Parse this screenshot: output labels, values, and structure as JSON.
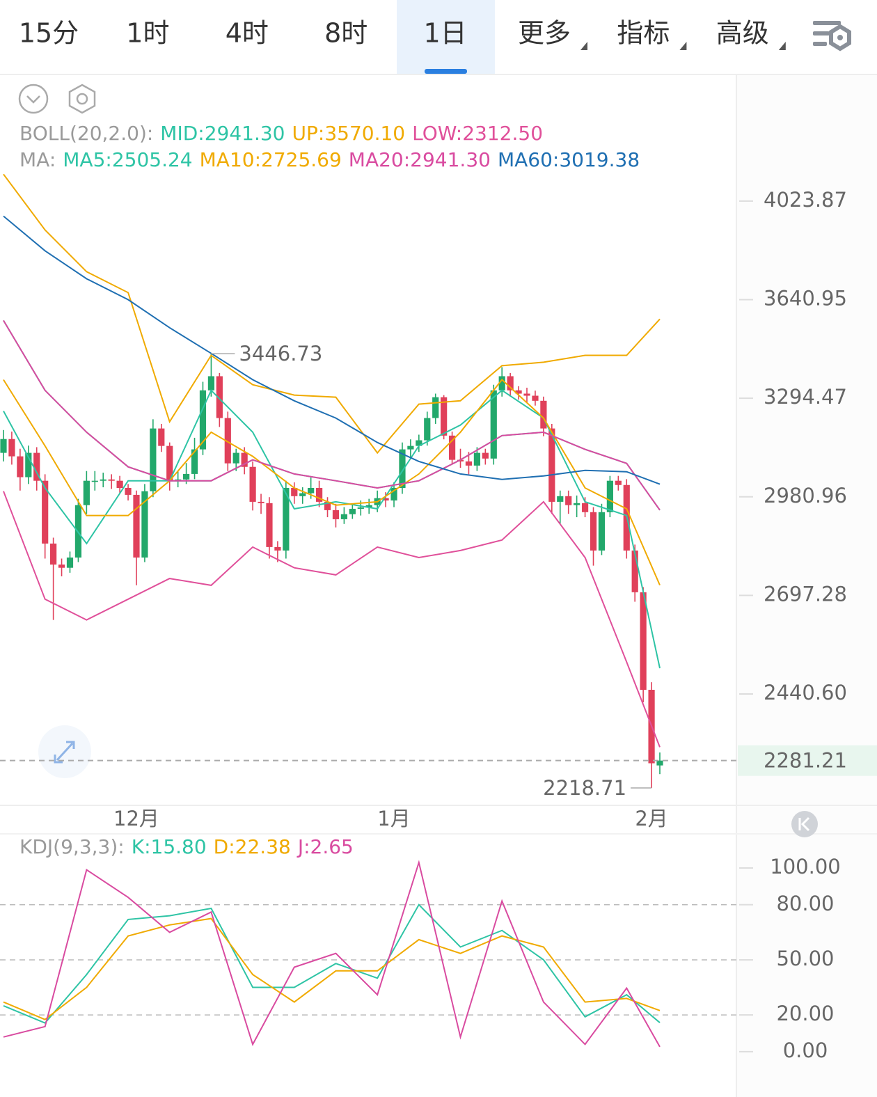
{
  "tabs": [
    {
      "label": "15分"
    },
    {
      "label": "1时"
    },
    {
      "label": "4时"
    },
    {
      "label": "8时"
    },
    {
      "label": "1日",
      "active": true
    },
    {
      "label": "更多",
      "dropdown": true
    },
    {
      "label": "指标",
      "dropdown": true
    },
    {
      "label": "高级",
      "dropdown": true
    }
  ],
  "chart_data": [
    {
      "type": "candlestick",
      "log": true,
      "ylim": [
        2183,
        4136
      ],
      "yticks": [
        4023.87,
        3640.95,
        3294.47,
        2980.96,
        2697.28,
        {
          "value": 2440.6,
          "label": "2440.60"
        }
      ],
      "up_color": "#22a86b",
      "down_color": "#e0405a",
      "categories": [
        null,
        null,
        null,
        null,
        null,
        null,
        null,
        null,
        null,
        null,
        null,
        null,
        null,
        null,
        null,
        null,
        "12月",
        null,
        null,
        null,
        null,
        null,
        null,
        null,
        null,
        null,
        null,
        null,
        null,
        null,
        null,
        null,
        null,
        null,
        null,
        null,
        null,
        null,
        null,
        null,
        null,
        null,
        null,
        null,
        null,
        null,
        null,
        "1月",
        null,
        null,
        null,
        null,
        null,
        null,
        null,
        null,
        null,
        null,
        null,
        null,
        null,
        null,
        null,
        null,
        null,
        null,
        null,
        null,
        null,
        null,
        null,
        null,
        null,
        null,
        null,
        null,
        null,
        null,
        "2月",
        null
      ],
      "candles": {
        "open": [
          3117,
          3161,
          3106,
          3041,
          3117,
          3030,
          2843,
          2783,
          2774,
          2803,
          2956,
          3030,
          3030,
          3034,
          3030,
          3008,
          2987,
          2803,
          2998,
          3195,
          3139,
          3030,
          3034,
          3051,
          3128,
          3321,
          3369,
          3229,
          3084,
          3117,
          3073,
          2966,
          2962,
          2833,
          2823,
          3008,
          2983,
          2992,
          3008,
          2966,
          2941,
          2914,
          2929,
          2945,
          2949,
          2956,
          2977,
          2970,
          3008,
          3128,
          3139,
          3157,
          3229,
          3298,
          3172,
          3095,
          3090,
          3077,
          3117,
          3099,
          3321,
          3369,
          3321,
          3310,
          3303,
          3286,
          3195,
          2966,
          2983,
          2956,
          2962,
          2935,
          2823,
          2935,
          3030,
          3017,
          2823,
          2706,
          2451,
          2270
        ],
        "high": [
          3190,
          3185,
          3130,
          3140,
          3135,
          3050,
          2860,
          2800,
          2820,
          2975,
          3060,
          3060,
          3055,
          3050,
          3045,
          3020,
          3000,
          3020,
          3225,
          3210,
          3150,
          3060,
          3085,
          3165,
          3350,
          3446.73,
          3380,
          3250,
          3130,
          3135,
          3090,
          2990,
          2980,
          2850,
          3030,
          3025,
          3010,
          3040,
          3030,
          2980,
          2960,
          2950,
          2960,
          2970,
          2975,
          3000,
          2995,
          3025,
          3150,
          3160,
          3175,
          3250,
          3310,
          3305,
          3185,
          3130,
          3120,
          3135,
          3130,
          3340,
          3400,
          3380,
          3335,
          3330,
          3320,
          3300,
          3210,
          3000,
          3000,
          2985,
          2980,
          2950,
          2960,
          3045,
          3045,
          3035,
          2840,
          2720,
          2470,
          2300
        ],
        "low": [
          3090,
          3080,
          3000,
          3020,
          3000,
          2800,
          2631,
          2750,
          2760,
          2790,
          2930,
          3000,
          3010,
          3005,
          2990,
          2970,
          2725,
          2790,
          2980,
          3120,
          3000,
          3010,
          3020,
          3035,
          3110,
          3300,
          3200,
          3060,
          3060,
          3050,
          2940,
          2930,
          2800,
          2790,
          2800,
          2960,
          2960,
          2975,
          2950,
          2920,
          2890,
          2900,
          2915,
          2925,
          2930,
          2935,
          2950,
          2950,
          2990,
          3100,
          3120,
          3140,
          3210,
          3160,
          3080,
          3070,
          3050,
          3060,
          3080,
          3080,
          3300,
          3300,
          3290,
          3280,
          3270,
          3170,
          2930,
          2900,
          2930,
          2920,
          2920,
          2780,
          2810,
          2920,
          3000,
          2800,
          2680,
          2420,
          2218.71,
          2250
        ],
        "close": [
          3161,
          3106,
          3041,
          3117,
          3030,
          2843,
          2783,
          2774,
          2803,
          2956,
          3030,
          3030,
          3034,
          3030,
          3008,
          2987,
          2803,
          2998,
          3195,
          3139,
          3030,
          3034,
          3051,
          3128,
          3321,
          3369,
          3229,
          3084,
          3117,
          3073,
          2966,
          2962,
          2833,
          2823,
          3008,
          2983,
          2992,
          3008,
          2966,
          2941,
          2914,
          2929,
          2945,
          2949,
          2956,
          2977,
          2970,
          3008,
          3128,
          3139,
          3157,
          3229,
          3298,
          3172,
          3095,
          3090,
          3077,
          3117,
          3099,
          3321,
          3369,
          3321,
          3310,
          3303,
          3286,
          3195,
          2966,
          2983,
          2956,
          2962,
          2935,
          2823,
          2935,
          3030,
          3017,
          2823,
          2706,
          2451,
          2275,
          2281.21
        ]
      },
      "indicator_labels": [
        "BOLL(20,2.0):",
        "MA:"
      ],
      "overlay_x": [
        0,
        5,
        10,
        15,
        20,
        25,
        30,
        35,
        40,
        45,
        50,
        55,
        60,
        65,
        70,
        75,
        79
      ],
      "overlays": [
        {
          "name": "MID",
          "label": "MID:2941.30",
          "group": 0,
          "color": "#2ec4a5",
          "values": [
            3565,
            3321,
            3183,
            3073,
            3030,
            3030,
            3095,
            3051,
            3030,
            3008,
            3030,
            3095,
            3172,
            3183,
            3128,
            3084,
            2941.3
          ]
        },
        {
          "name": "UP",
          "label": "UP:3570.10",
          "group": 0,
          "color": "#f0aa00",
          "values": [
            4135,
            3908,
            3746,
            3667,
            3217,
            3441,
            3340,
            3305,
            3298,
            3117,
            3275,
            3286,
            3405,
            3417,
            3441,
            3441,
            3570.1
          ]
        },
        {
          "name": "LOW",
          "label": "LOW:2312.50",
          "group": 0,
          "color": "#e0509a",
          "values": [
            2998,
            2687,
            2631,
            2687,
            2744,
            2725,
            2833,
            2774,
            2754,
            2833,
            2803,
            2823,
            2853,
            2966,
            2803,
            2521,
            2312.5
          ]
        },
        {
          "name": "MA5",
          "label": "MA5:2505.24",
          "group": 1,
          "color": "#2ec4a5",
          "values": [
            3252,
            3008,
            2843,
            3030,
            3030,
            3321,
            3183,
            2945,
            2966,
            2945,
            3139,
            3206,
            3321,
            3229,
            2966,
            2925,
            2505.24
          ]
        },
        {
          "name": "MA10",
          "label": "MA10:2725.69",
          "group": 1,
          "color": "#f0aa00",
          "values": [
            3357,
            3139,
            2925,
            2925,
            3030,
            3183,
            3106,
            3008,
            2956,
            2966,
            3051,
            3183,
            3357,
            3229,
            3008,
            2945,
            2725.69
          ]
        },
        {
          "name": "MA20",
          "label": "MA20:2941.30",
          "group": 1,
          "color": "#d94ba0",
          "values": [
            3565,
            3321,
            3183,
            3073,
            3030,
            3030,
            3095,
            3051,
            3030,
            3008,
            3030,
            3095,
            3172,
            3183,
            3128,
            3084,
            2941.3
          ]
        },
        {
          "name": "MA60",
          "label": "MA60:3019.38",
          "group": 1,
          "color": "#1f6fb2",
          "values": [
            3963,
            3826,
            3719,
            3641,
            3539,
            3448,
            3357,
            3286,
            3229,
            3150,
            3090,
            3051,
            3034,
            3045,
            3062,
            3058,
            3019.38
          ]
        }
      ]
    },
    {
      "type": "line",
      "indicator_label": "KDJ(9,3,3):",
      "ylim": [
        -18.6,
        117.8
      ],
      "yticks": [
        {
          "value": 100,
          "label": "100.00"
        },
        {
          "value": 80,
          "label": "80.00"
        },
        {
          "value": 50,
          "label": "50.00"
        },
        {
          "value": 20,
          "label": "20.00"
        },
        {
          "value": 0,
          "label": "0.00"
        }
      ],
      "grid": [
        false,
        true,
        true,
        true,
        false
      ],
      "x": [
        0,
        5,
        10,
        15,
        20,
        25,
        30,
        35,
        40,
        45,
        50,
        55,
        60,
        65,
        70,
        75,
        79
      ],
      "series": [
        {
          "name": "K",
          "label": "K:15.80",
          "color": "#2ec4a5",
          "values": [
            25,
            15.6,
            42,
            72,
            74,
            78,
            35,
            35,
            48,
            40,
            80,
            57,
            66,
            50,
            19,
            31,
            15.8
          ]
        },
        {
          "name": "D",
          "label": "D:22.38",
          "color": "#f0aa00",
          "values": [
            27,
            17.5,
            35,
            63,
            69,
            72.5,
            42,
            27,
            44,
            44,
            61,
            53.5,
            63,
            57,
            27,
            29,
            22.38
          ]
        },
        {
          "name": "J",
          "label": "J:2.65",
          "color": "#d94ba0",
          "values": [
            8,
            13.7,
            99,
            84,
            65,
            76,
            4,
            46,
            53.5,
            31,
            103,
            8,
            82,
            27,
            4,
            34.6,
            2.65
          ]
        }
      ]
    }
  ]
}
